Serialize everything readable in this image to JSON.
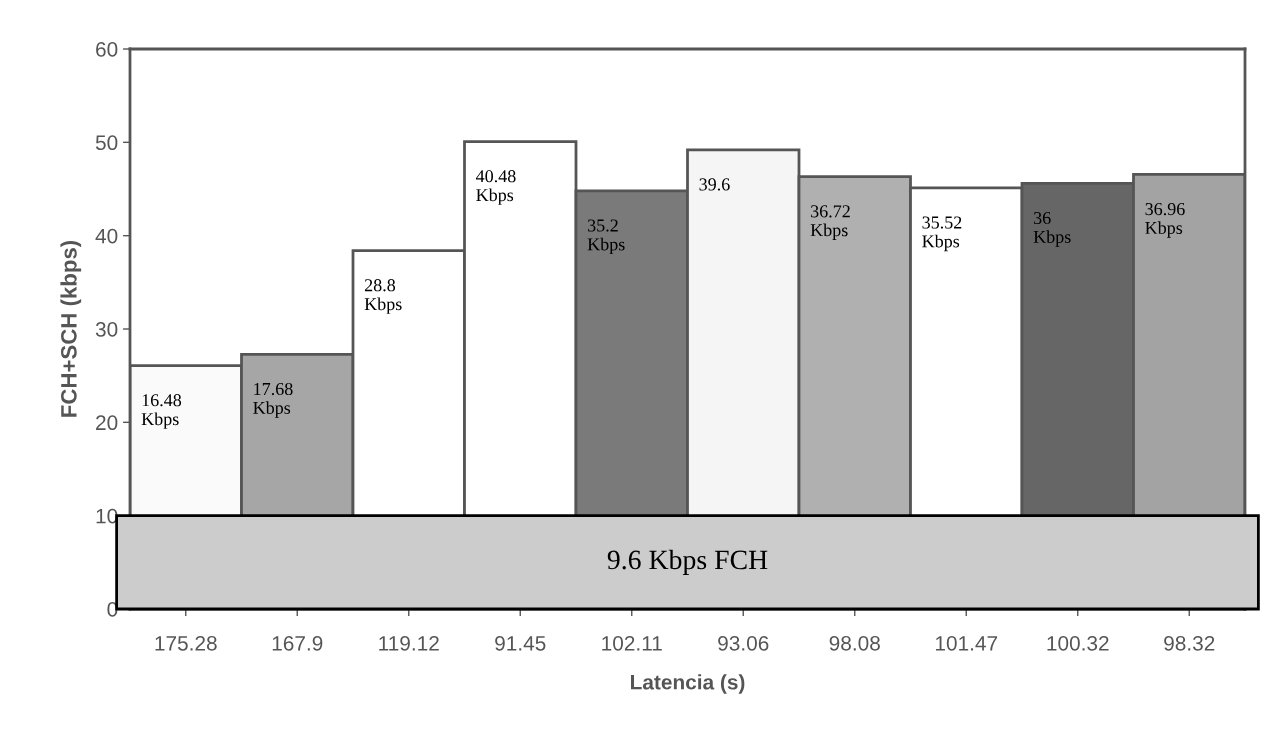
{
  "chart_data": {
    "type": "bar",
    "xlabel": "Latencia (s)",
    "ylabel": "FCH+SCH (kbps)",
    "categories": [
      "175.28",
      "167.9",
      "119.12",
      "91.45",
      "102.11",
      "93.06",
      "98.08",
      "101.47",
      "100.32",
      "98.32"
    ],
    "base": [
      9.6,
      9.6,
      9.6,
      9.6,
      9.6,
      9.6,
      9.6,
      9.6,
      9.6,
      9.6
    ],
    "values": [
      16.48,
      17.68,
      28.8,
      40.48,
      35.2,
      39.6,
      36.72,
      35.52,
      36,
      36.96
    ],
    "colors": [
      "#fafafa",
      "#a6a6a6",
      "#ffffff",
      "#ffffff",
      "#7a7a7a",
      "#f5f5f5",
      "#b0b0b0",
      "#ffffff",
      "#666666",
      "#a3a3a3"
    ],
    "value_labels": [
      "16.48\nKbps",
      "17.68\nKbps",
      "28.8\nKbps",
      "40.48\nKbps",
      "35.2\nKbps",
      "39.6",
      "36.72\nKbps",
      "35.52\nKbps",
      "36\nKbps",
      "36.96\nKbps"
    ],
    "ylim": [
      0,
      60
    ],
    "yticks": [
      0,
      10,
      20,
      30,
      40,
      50,
      60
    ],
    "bands": [
      {
        "axis": "y",
        "from": 0,
        "to": 10,
        "label": "9.6 Kbps FCH",
        "color": "#cccccc"
      }
    ],
    "grid": false
  }
}
